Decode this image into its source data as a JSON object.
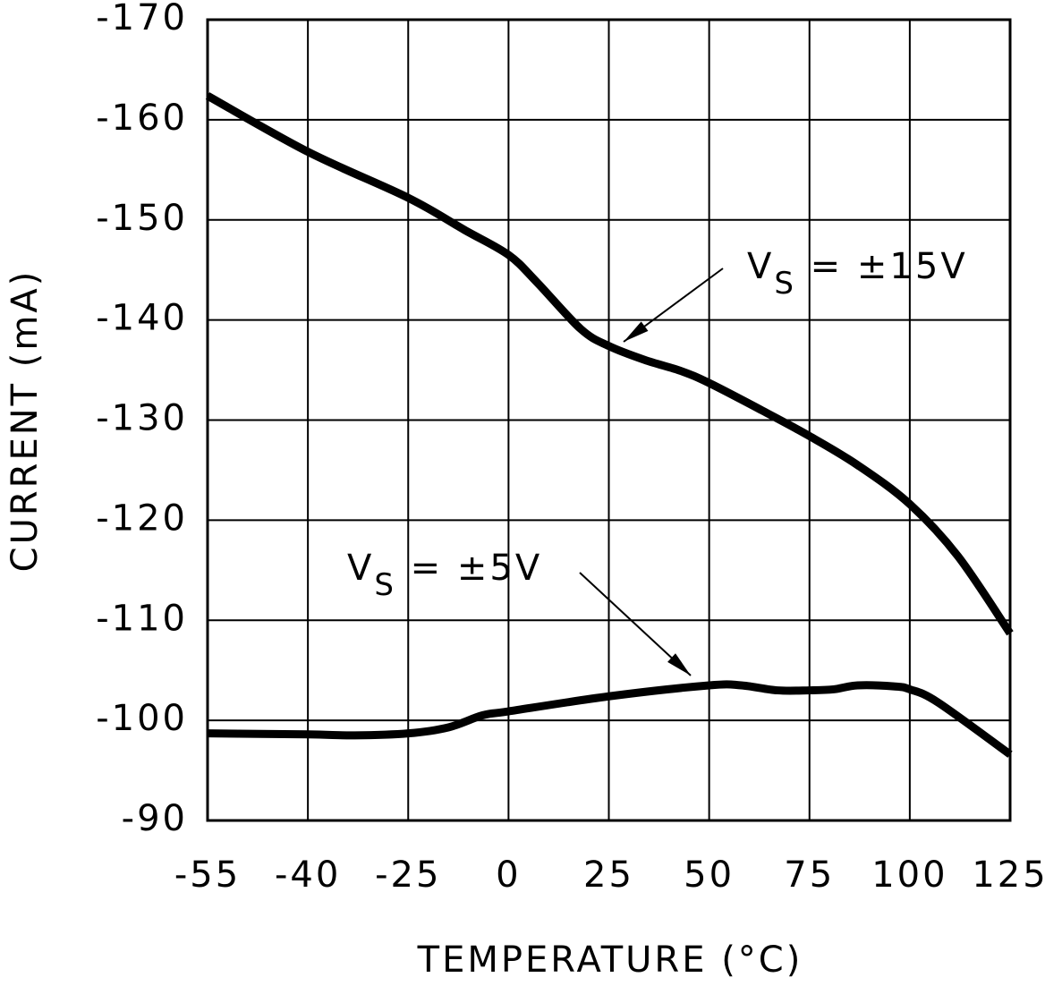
{
  "chart_data": {
    "type": "line",
    "xlabel": "TEMPERATURE (°C)",
    "ylabel": "CURRENT (mA)",
    "xlim": [
      -55,
      125
    ],
    "xticks": [
      -55,
      -40,
      -25,
      0,
      25,
      50,
      75,
      100,
      125
    ],
    "ylim": [
      -90,
      -170
    ],
    "yticks": [
      -90,
      -100,
      -110,
      -120,
      -130,
      -140,
      -150,
      -160,
      -170
    ],
    "grid": true,
    "series": [
      {
        "color": "#000000",
        "x": [
          -55,
          -40,
          -25,
          -11,
          0,
          7,
          18,
          25,
          34,
          43,
          50,
          63,
          75,
          87,
          100,
          112,
          125
        ],
        "values": [
          -162.4,
          -156.8,
          -152.2,
          -149.0,
          -146.5,
          -143.8,
          -139.1,
          -137.4,
          -136.0,
          -134.9,
          -133.7,
          -131.0,
          -128.4,
          -125.5,
          -121.6,
          -116.4,
          -108.7
        ]
      },
      {
        "color": "#000000",
        "x": [
          -55,
          -40,
          -33,
          -25,
          -15,
          -6.5,
          0,
          25,
          50,
          58,
          67,
          75,
          81,
          87,
          96,
          100,
          107,
          125
        ],
        "values": [
          -98.7,
          -98.6,
          -98.5,
          -98.7,
          -99.3,
          -100.5,
          -100.9,
          -102.4,
          -103.5,
          -103.5,
          -103.0,
          -103.0,
          -103.1,
          -103.5,
          -103.4,
          -103.1,
          -101.8,
          -96.6
        ]
      }
    ],
    "annotations": [
      {
        "text": "V",
        "subscript": "S",
        "suffix": " = ±15V"
      },
      {
        "text": "V",
        "subscript": "S",
        "suffix": " = ±5V"
      }
    ]
  }
}
